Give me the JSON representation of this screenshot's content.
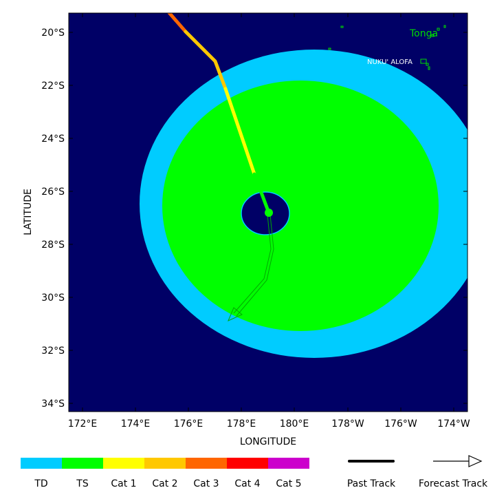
{
  "map": {
    "axes": {
      "xlabel": "LONGITUDE",
      "ylabel": "LATITUDE",
      "x_ticks": [
        "172°E",
        "174°E",
        "176°E",
        "178°E",
        "180°E",
        "178°W",
        "176°W",
        "174°W"
      ],
      "y_ticks": [
        "20°S",
        "22°S",
        "24°S",
        "26°S",
        "28°S",
        "30°S",
        "32°S",
        "34°S"
      ],
      "lon_range": [
        171,
        185
      ],
      "lat_range": [
        -34.3,
        -19.3
      ]
    },
    "labels": {
      "country": "Tonga",
      "capital": "NUKU' ALOFA"
    },
    "colors": {
      "ocean": "#000066",
      "td": "#00ccff",
      "ts": "#00ff00",
      "cat1": "#ffff00",
      "cat2": "#ffc800",
      "cat3": "#ff6600",
      "cat4": "#ff0000",
      "cat5": "#cc00cc",
      "land_outline": "#00dd00"
    },
    "storm_center": {
      "lon": 179.1,
      "lat": -26.8
    }
  },
  "legend": {
    "categories": [
      {
        "label": "TD",
        "color": "#00ccff"
      },
      {
        "label": "TS",
        "color": "#00ff00"
      },
      {
        "label": "Cat 1",
        "color": "#ffff00"
      },
      {
        "label": "Cat 2",
        "color": "#ffc800"
      },
      {
        "label": "Cat 3",
        "color": "#ff6600"
      },
      {
        "label": "Cat 4",
        "color": "#ff0000"
      },
      {
        "label": "Cat 5",
        "color": "#cc00cc"
      }
    ],
    "past_track_label": "Past Track",
    "forecast_track_label": "Forecast Track"
  }
}
